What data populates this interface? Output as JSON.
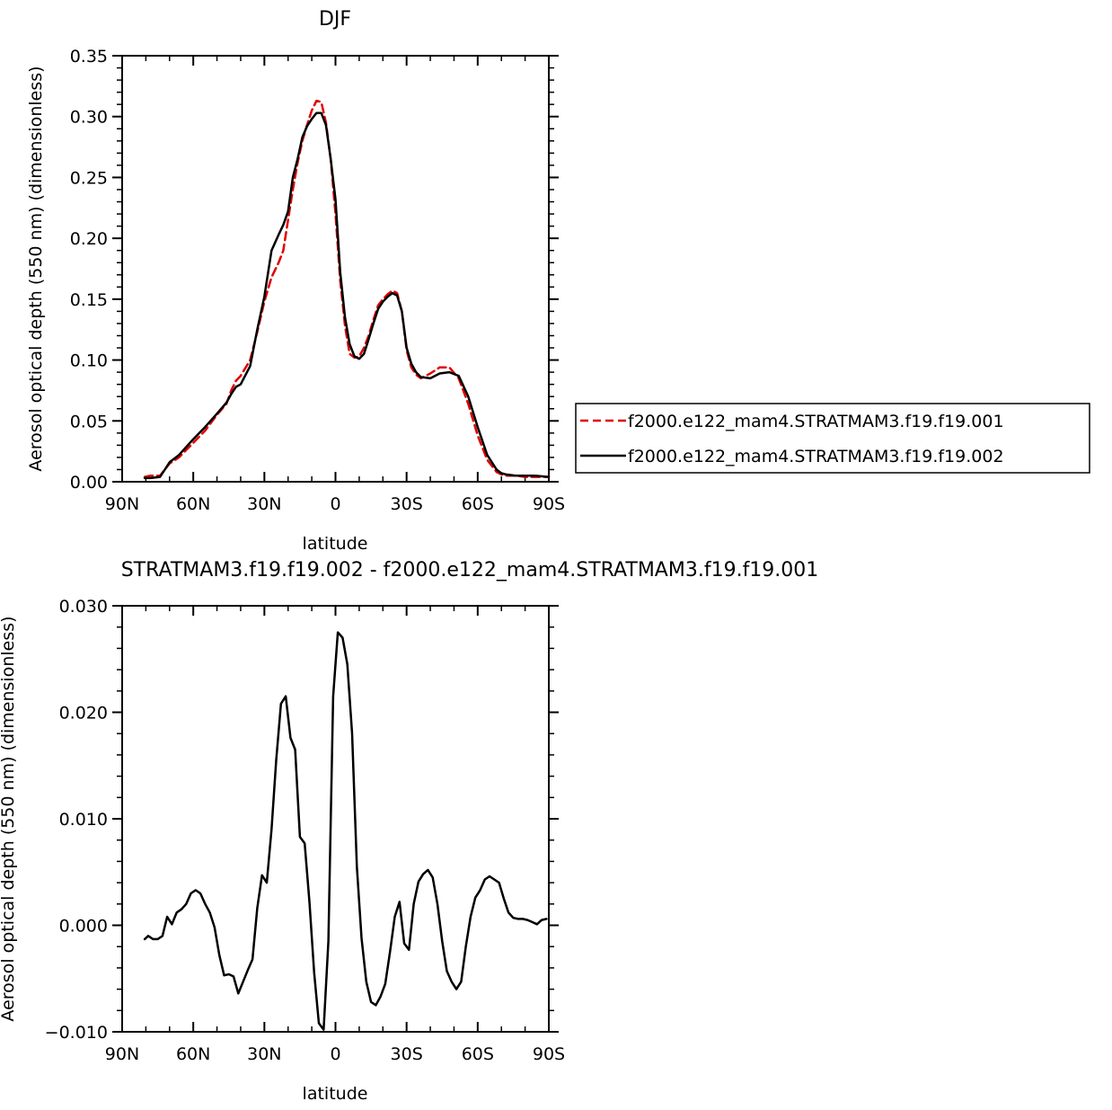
{
  "chart_data": [
    {
      "type": "line",
      "title": "DJF",
      "xlabel": "latitude",
      "ylabel": "Aerosol optical depth (550 nm) (dimensionless)",
      "xlim": [
        -90,
        90
      ],
      "ylim": [
        0,
        0.35
      ],
      "x_tick_values": [
        -90,
        -60,
        -30,
        0,
        30,
        60,
        90
      ],
      "x_tick_labels": [
        "90N",
        "60N",
        "30N",
        "0",
        "30S",
        "60S",
        "90S"
      ],
      "y_tick_values": [
        0,
        0.05,
        0.1,
        0.15,
        0.2,
        0.25,
        0.3,
        0.35
      ],
      "y_tick_labels": [
        "0.00",
        "0.05",
        "0.10",
        "0.15",
        "0.20",
        "0.25",
        "0.30",
        "0.35"
      ],
      "legend_position": "right",
      "series": [
        {
          "name": "f2000.e122_mam4.STRATMAM3.f19.f19.001",
          "color": "#e00000",
          "dash": "dashed",
          "x": [
            -80.5,
            -78,
            -74,
            -72,
            -70,
            -66,
            -60,
            -55,
            -50,
            -46,
            -44,
            -42,
            -40,
            -36,
            -33,
            -30,
            -27,
            -24,
            -22,
            -20,
            -18,
            -16,
            -14,
            -12,
            -10,
            -8,
            -6,
            -4,
            -2,
            0,
            2,
            4,
            6,
            8,
            10,
            12,
            14,
            16,
            18,
            20,
            22,
            24,
            26,
            28,
            30,
            32,
            34,
            36,
            40,
            44,
            48,
            52,
            56,
            60,
            64,
            68,
            70,
            72,
            76,
            80,
            84,
            90
          ],
          "y": [
            0.004,
            0.005,
            0.005,
            0.01,
            0.015,
            0.02,
            0.032,
            0.042,
            0.055,
            0.064,
            0.075,
            0.083,
            0.087,
            0.1,
            0.123,
            0.148,
            0.168,
            0.18,
            0.19,
            0.215,
            0.24,
            0.262,
            0.28,
            0.293,
            0.305,
            0.313,
            0.312,
            0.295,
            0.265,
            0.22,
            0.165,
            0.128,
            0.105,
            0.102,
            0.103,
            0.11,
            0.12,
            0.133,
            0.145,
            0.15,
            0.154,
            0.157,
            0.155,
            0.14,
            0.108,
            0.094,
            0.088,
            0.085,
            0.089,
            0.094,
            0.094,
            0.085,
            0.064,
            0.038,
            0.018,
            0.008,
            0.006,
            0.005,
            0.005,
            0.004,
            0.004,
            0.004
          ]
        },
        {
          "name": "f2000.e122_mam4.STRATMAM3.f19.f19.002",
          "color": "#000000",
          "dash": "solid",
          "x": [
            -80.5,
            -78,
            -74,
            -72,
            -70,
            -66,
            -60,
            -55,
            -50,
            -46,
            -44,
            -42,
            -40,
            -36,
            -33,
            -30,
            -27,
            -24,
            -22,
            -20,
            -18,
            -16,
            -14,
            -12,
            -10,
            -8,
            -6,
            -4,
            -2,
            0,
            2,
            4,
            6,
            8,
            10,
            12,
            14,
            16,
            18,
            20,
            22,
            24,
            26,
            28,
            30,
            32,
            34,
            36,
            40,
            44,
            48,
            52,
            56,
            60,
            64,
            68,
            70,
            72,
            76,
            80,
            84,
            90
          ],
          "y": [
            0.003,
            0.003,
            0.004,
            0.01,
            0.016,
            0.022,
            0.035,
            0.045,
            0.056,
            0.065,
            0.072,
            0.078,
            0.08,
            0.095,
            0.125,
            0.152,
            0.19,
            0.203,
            0.211,
            0.222,
            0.25,
            0.265,
            0.283,
            0.292,
            0.298,
            0.303,
            0.303,
            0.293,
            0.265,
            0.232,
            0.172,
            0.135,
            0.113,
            0.103,
            0.101,
            0.105,
            0.117,
            0.13,
            0.142,
            0.148,
            0.152,
            0.155,
            0.153,
            0.14,
            0.11,
            0.097,
            0.09,
            0.086,
            0.085,
            0.089,
            0.09,
            0.087,
            0.07,
            0.045,
            0.022,
            0.01,
            0.007,
            0.006,
            0.005,
            0.005,
            0.005,
            0.004
          ]
        }
      ]
    },
    {
      "type": "line",
      "title": "STRATMAM3.f19.f19.002 - f2000.e122_mam4.STRATMAM3.f19.f19.001",
      "xlabel": "latitude",
      "ylabel": "Aerosol optical depth (550 nm) (dimensionless)",
      "xlim": [
        -90,
        90
      ],
      "ylim": [
        -0.01,
        0.03
      ],
      "x_tick_values": [
        -90,
        -60,
        -30,
        0,
        30,
        60,
        90
      ],
      "x_tick_labels": [
        "90N",
        "60N",
        "30N",
        "0",
        "30S",
        "60S",
        "90S"
      ],
      "y_tick_values": [
        -0.01,
        0,
        0.01,
        0.02,
        0.03
      ],
      "y_tick_labels": [
        "-0.010",
        "0.000",
        "0.010",
        "0.020",
        "0.030"
      ],
      "series": [
        {
          "color": "#000000",
          "dash": "solid",
          "x": [
            -80.5,
            -79,
            -77,
            -75,
            -73,
            -71,
            -69,
            -67,
            -65,
            -63,
            -61,
            -59,
            -57,
            -55,
            -53,
            -51,
            -49,
            -47,
            -45,
            -43,
            -41,
            -39,
            -37,
            -35,
            -33,
            -31,
            -29,
            -27,
            -25,
            -23,
            -21,
            -19,
            -17,
            -15,
            -13,
            -11,
            -9,
            -7,
            -5,
            -3,
            -1,
            1,
            3,
            5,
            7,
            9,
            11,
            13,
            15,
            17,
            19,
            21,
            23,
            25,
            27,
            29,
            31,
            33,
            35,
            37,
            39,
            41,
            43,
            45,
            47,
            49,
            51,
            53,
            55,
            57,
            59,
            61,
            63,
            65,
            67,
            69,
            71,
            73,
            75,
            77,
            79,
            81,
            83,
            85,
            87,
            89
          ],
          "y": [
            -0.0013,
            -0.001,
            -0.0013,
            -0.0013,
            -0.001,
            0.0008,
            0.0001,
            0.0012,
            0.0015,
            0.002,
            0.003,
            0.0033,
            0.003,
            0.002,
            0.0012,
            -0.0002,
            -0.0028,
            -0.0047,
            -0.0046,
            -0.0048,
            -0.0064,
            -0.0053,
            -0.0042,
            -0.0032,
            0.0016,
            0.0047,
            0.004,
            0.009,
            0.0155,
            0.0208,
            0.0215,
            0.0176,
            0.0165,
            0.0083,
            0.0077,
            0.0022,
            -0.0045,
            -0.0092,
            -0.0098,
            -0.0015,
            0.0215,
            0.0275,
            0.027,
            0.0245,
            0.018,
            0.0055,
            -0.0012,
            -0.0053,
            -0.0072,
            -0.0075,
            -0.0067,
            -0.0055,
            -0.0025,
            0.0008,
            0.0022,
            -0.0017,
            -0.0023,
            0.002,
            0.0041,
            0.0048,
            0.0052,
            0.0045,
            0.002,
            -0.0015,
            -0.0043,
            -0.0053,
            -0.006,
            -0.0053,
            -0.002,
            0.0008,
            0.0026,
            0.0033,
            0.0043,
            0.0046,
            0.0043,
            0.004,
            0.0025,
            0.0012,
            0.0007,
            0.0006,
            0.0006,
            0.0005,
            0.0003,
            0.0001,
            0.0005,
            0.0006
          ]
        }
      ]
    }
  ]
}
